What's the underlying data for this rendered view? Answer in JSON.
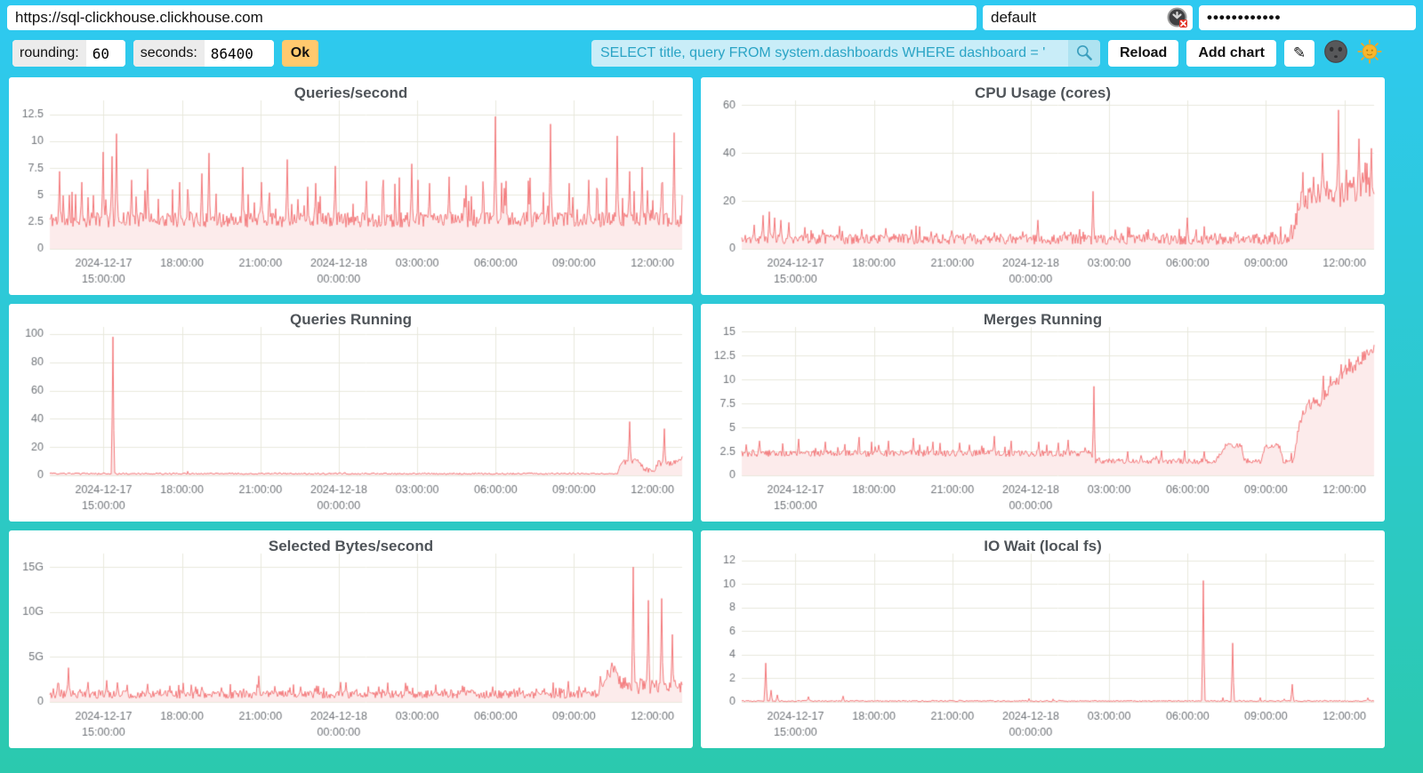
{
  "connection": {
    "url": "https://sql-clickhouse.clickhouse.com",
    "user": "default",
    "password_masked": "••••••••••••"
  },
  "controls": {
    "rounding_label": "rounding:",
    "rounding_value": "60",
    "seconds_label": "seconds:",
    "seconds_value": "86400",
    "ok_label": "Ok",
    "query_value": "SELECT title, query FROM system.dashboards WHERE dashboard = '",
    "reload_label": "Reload",
    "add_chart_label": "Add chart",
    "edit_icon": "✎"
  },
  "colors": {
    "line": "#f3797b",
    "fill": "#fcebeb",
    "grid": "#e8e8dc",
    "axis_text": "#71757a",
    "title_text": "#4f5459",
    "accent_ok": "#ffc96e",
    "query_bg": "#c9edf8",
    "query_text": "#2aa4c5"
  },
  "time_axis": {
    "fracs": [
      0.085,
      0.209,
      0.333,
      0.457,
      0.581,
      0.705,
      0.829,
      0.953
    ],
    "ticks": [
      {
        "line1": "2024-12-17",
        "line2": "15:00:00"
      },
      {
        "line1": "18:00:00"
      },
      {
        "line1": "21:00:00"
      },
      {
        "line1": "2024-12-18",
        "line2": "00:00:00"
      },
      {
        "line1": "03:00:00"
      },
      {
        "line1": "06:00:00"
      },
      {
        "line1": "09:00:00"
      },
      {
        "line1": "12:00:00"
      }
    ]
  },
  "charts": [
    {
      "title": "Queries/second",
      "chart_data": {
        "type": "area",
        "ylim": [
          0,
          13.8
        ],
        "ytick_values": [
          0,
          2.5,
          5,
          7.5,
          10,
          12.5
        ],
        "ytick_labels": [
          "0",
          "2.5",
          "5",
          "7.5",
          "10",
          "12.5"
        ],
        "baseline_env": [
          [
            0,
            2.5
          ],
          [
            1,
            2.5
          ]
        ],
        "noise_env": [
          [
            0,
            0.7
          ],
          [
            1,
            0.7
          ]
        ],
        "extra_spike_prob": 0.1,
        "extra_spike_amp": 3.5,
        "spikes": [
          [
            0.015,
            7.2
          ],
          [
            0.05,
            6.2
          ],
          [
            0.085,
            9.0
          ],
          [
            0.098,
            8.6
          ],
          [
            0.105,
            10.7
          ],
          [
            0.13,
            6.4
          ],
          [
            0.155,
            7.4
          ],
          [
            0.205,
            6.2
          ],
          [
            0.24,
            7.0
          ],
          [
            0.252,
            8.9
          ],
          [
            0.305,
            7.6
          ],
          [
            0.335,
            6.2
          ],
          [
            0.375,
            8.3
          ],
          [
            0.42,
            6.1
          ],
          [
            0.452,
            7.7
          ],
          [
            0.5,
            6.3
          ],
          [
            0.527,
            6.4
          ],
          [
            0.572,
            7.9
          ],
          [
            0.6,
            6.1
          ],
          [
            0.632,
            6.7
          ],
          [
            0.658,
            5.9
          ],
          [
            0.705,
            12.3
          ],
          [
            0.722,
            6.3
          ],
          [
            0.76,
            6.6
          ],
          [
            0.792,
            11.6
          ],
          [
            0.822,
            6.1
          ],
          [
            0.852,
            6.4
          ],
          [
            0.897,
            10.5
          ],
          [
            0.917,
            7.2
          ],
          [
            0.937,
            7.6
          ],
          [
            0.967,
            6.1
          ],
          [
            0.988,
            10.8
          ]
        ],
        "seed": 11
      }
    },
    {
      "title": "CPU Usage (cores)",
      "chart_data": {
        "type": "area",
        "ylim": [
          0,
          62
        ],
        "ytick_values": [
          0,
          20,
          40,
          60
        ],
        "ytick_labels": [
          "0",
          "20",
          "40",
          "60"
        ],
        "baseline_env": [
          [
            0,
            3.5
          ],
          [
            0.86,
            3.2
          ],
          [
            0.872,
            6
          ],
          [
            0.882,
            17
          ],
          [
            0.9,
            20
          ],
          [
            0.93,
            22
          ],
          [
            0.955,
            20
          ],
          [
            0.975,
            24
          ],
          [
            1,
            26
          ]
        ],
        "noise_env": [
          [
            0,
            2.2
          ],
          [
            0.86,
            2.2
          ],
          [
            0.885,
            5
          ],
          [
            1,
            6
          ]
        ],
        "extra_spike_prob": 0.07,
        "extra_spike_amp": 4.5,
        "spikes": [
          [
            0.02,
            10
          ],
          [
            0.034,
            14
          ],
          [
            0.044,
            15.5
          ],
          [
            0.052,
            13
          ],
          [
            0.062,
            12
          ],
          [
            0.075,
            11
          ],
          [
            0.1,
            9
          ],
          [
            0.128,
            8
          ],
          [
            0.155,
            9.5
          ],
          [
            0.19,
            8.2
          ],
          [
            0.228,
            8.6
          ],
          [
            0.268,
            8
          ],
          [
            0.3,
            7.2
          ],
          [
            0.332,
            7.6
          ],
          [
            0.362,
            6.5
          ],
          [
            0.4,
            6.8
          ],
          [
            0.444,
            7.2
          ],
          [
            0.468,
            12
          ],
          [
            0.52,
            7
          ],
          [
            0.556,
            24
          ],
          [
            0.6,
            6.5
          ],
          [
            0.64,
            7
          ],
          [
            0.672,
            6.5
          ],
          [
            0.705,
            13
          ],
          [
            0.748,
            6.5
          ],
          [
            0.78,
            7
          ],
          [
            0.815,
            6.3
          ],
          [
            0.84,
            7
          ],
          [
            0.888,
            32
          ],
          [
            0.905,
            30
          ],
          [
            0.918,
            40
          ],
          [
            0.944,
            58
          ],
          [
            0.956,
            33
          ],
          [
            0.968,
            30
          ],
          [
            0.976,
            46
          ],
          [
            0.986,
            36
          ],
          [
            0.996,
            42
          ]
        ],
        "seed": 22
      }
    },
    {
      "title": "Queries Running",
      "chart_data": {
        "type": "area",
        "ylim": [
          0,
          105
        ],
        "ytick_values": [
          0,
          20,
          40,
          60,
          80,
          100
        ],
        "ytick_labels": [
          "0",
          "20",
          "40",
          "60",
          "80",
          "100"
        ],
        "baseline_env": [
          [
            0,
            1
          ],
          [
            0.897,
            1
          ],
          [
            0.903,
            8
          ],
          [
            0.917,
            10
          ],
          [
            0.933,
            9
          ],
          [
            0.94,
            3.5
          ],
          [
            0.956,
            3.5
          ],
          [
            0.962,
            8
          ],
          [
            0.985,
            8
          ],
          [
            1,
            12
          ]
        ],
        "noise_env": [
          [
            0,
            0.6
          ],
          [
            0.895,
            0.6
          ],
          [
            0.905,
            2
          ],
          [
            1,
            2
          ]
        ],
        "extra_spike_prob": 0.02,
        "extra_spike_amp": 1.2,
        "spikes": [
          [
            0.1,
            98
          ],
          [
            0.917,
            38
          ],
          [
            0.972,
            33
          ]
        ],
        "seed": 33
      }
    },
    {
      "title": "Merges Running",
      "chart_data": {
        "type": "area",
        "ylim": [
          0,
          15.5
        ],
        "ytick_values": [
          0,
          2.5,
          5,
          7.5,
          10,
          12.5,
          15
        ],
        "ytick_labels": [
          "0",
          "2.5",
          "5",
          "7.5",
          "10",
          "12.5",
          "15"
        ],
        "baseline_env": [
          [
            0,
            2.2
          ],
          [
            0.55,
            2.2
          ],
          [
            0.56,
            1.4
          ],
          [
            0.75,
            1.4
          ],
          [
            0.765,
            3
          ],
          [
            0.79,
            3
          ],
          [
            0.795,
            1.4
          ],
          [
            0.822,
            1.4
          ],
          [
            0.828,
            3
          ],
          [
            0.85,
            3
          ],
          [
            0.856,
            1.4
          ],
          [
            0.872,
            1.4
          ],
          [
            0.882,
            5.2
          ],
          [
            0.895,
            7.4
          ],
          [
            0.912,
            7.2
          ],
          [
            0.928,
            8.8
          ],
          [
            0.945,
            9.6
          ],
          [
            0.958,
            11
          ],
          [
            0.972,
            11.3
          ],
          [
            0.985,
            12.2
          ],
          [
            1,
            12.9
          ]
        ],
        "noise_env": [
          [
            0,
            0.35
          ],
          [
            0.55,
            0.35
          ],
          [
            0.56,
            0.28
          ],
          [
            0.87,
            0.28
          ],
          [
            0.89,
            0.7
          ],
          [
            1,
            0.7
          ]
        ],
        "extra_spike_prob": 0.05,
        "extra_spike_amp": 1.1,
        "spikes": [
          [
            0.028,
            3.6
          ],
          [
            0.09,
            3.8
          ],
          [
            0.132,
            3.5
          ],
          [
            0.185,
            4.0
          ],
          [
            0.232,
            3.6
          ],
          [
            0.272,
            3.9
          ],
          [
            0.302,
            3.5
          ],
          [
            0.345,
            3.4
          ],
          [
            0.4,
            4.1
          ],
          [
            0.426,
            3.6
          ],
          [
            0.47,
            3.5
          ],
          [
            0.5,
            3.4
          ],
          [
            0.516,
            3.7
          ],
          [
            0.557,
            9.3
          ],
          [
            0.61,
            2.5
          ],
          [
            0.664,
            2.6
          ],
          [
            0.7,
            2.6
          ],
          [
            0.732,
            2.5
          ],
          [
            0.92,
            10.4
          ],
          [
            0.948,
            11.6
          ],
          [
            0.975,
            12.4
          ],
          [
            0.995,
            13.1
          ]
        ],
        "seed": 44
      }
    },
    {
      "title": "Selected Bytes/second",
      "chart_data": {
        "type": "area",
        "ylim": [
          0,
          16.5
        ],
        "unit": "G",
        "ytick_values": [
          0,
          5,
          10,
          15
        ],
        "ytick_labels": [
          "0",
          "5G",
          "10G",
          "15G"
        ],
        "baseline_env": [
          [
            0,
            0.7
          ],
          [
            0.868,
            0.7
          ],
          [
            0.878,
            2.6
          ],
          [
            0.888,
            3.4
          ],
          [
            0.9,
            2.2
          ],
          [
            0.915,
            1.8
          ],
          [
            0.93,
            1.5
          ],
          [
            1,
            1.4
          ]
        ],
        "noise_env": [
          [
            0,
            0.45
          ],
          [
            0.868,
            0.45
          ],
          [
            0.88,
            1.0
          ],
          [
            1,
            0.8
          ]
        ],
        "extra_spike_prob": 0.1,
        "extra_spike_amp": 1.1,
        "spikes": [
          [
            0.012,
            2.1
          ],
          [
            0.03,
            3.8
          ],
          [
            0.06,
            2.2
          ],
          [
            0.09,
            2.4
          ],
          [
            0.122,
            1.9
          ],
          [
            0.155,
            2.0
          ],
          [
            0.19,
            1.8
          ],
          [
            0.23,
            1.7
          ],
          [
            0.272,
            1.6
          ],
          [
            0.33,
            2.9
          ],
          [
            0.38,
            1.6
          ],
          [
            0.422,
            1.8
          ],
          [
            0.46,
            2.2
          ],
          [
            0.52,
            1.7
          ],
          [
            0.565,
            1.8
          ],
          [
            0.61,
            1.6
          ],
          [
            0.652,
            1.8
          ],
          [
            0.7,
            1.7
          ],
          [
            0.742,
            1.6
          ],
          [
            0.782,
            1.5
          ],
          [
            0.82,
            2.3
          ],
          [
            0.846,
            1.6
          ],
          [
            0.922,
            15.0
          ],
          [
            0.946,
            11.3
          ],
          [
            0.968,
            11.5
          ],
          [
            0.985,
            7.5
          ]
        ],
        "seed": 55
      }
    },
    {
      "title": "IO Wait (local fs)",
      "chart_data": {
        "type": "area",
        "ylim": [
          0,
          12.6
        ],
        "ytick_values": [
          0,
          2,
          4,
          6,
          8,
          10,
          12
        ],
        "ytick_labels": [
          "0",
          "2",
          "4",
          "6",
          "8",
          "10",
          "12"
        ],
        "baseline_env": [
          [
            0,
            0.06
          ],
          [
            1,
            0.06
          ]
        ],
        "noise_env": [
          [
            0,
            0.06
          ],
          [
            1,
            0.06
          ]
        ],
        "extra_spike_prob": 0.015,
        "extra_spike_amp": 0.3,
        "spikes": [
          [
            0.038,
            3.3
          ],
          [
            0.046,
            1.0
          ],
          [
            0.056,
            0.6
          ],
          [
            0.105,
            0.45
          ],
          [
            0.16,
            0.5
          ],
          [
            0.73,
            10.3
          ],
          [
            0.776,
            5.0
          ],
          [
            0.87,
            1.5
          ],
          [
            0.99,
            0.35
          ]
        ],
        "seed": 66
      }
    }
  ]
}
